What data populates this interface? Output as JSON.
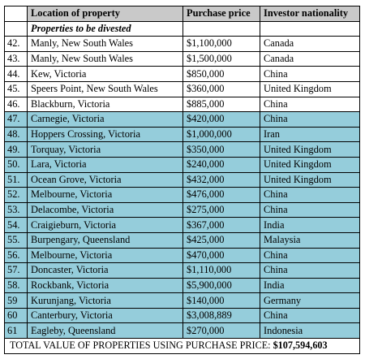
{
  "headers": {
    "location": "Location of property",
    "price": "Purchase price",
    "nationality": "Investor nationality"
  },
  "subheader": "Properties to be divested",
  "rows": [
    {
      "num": "42.",
      "location": "Manly, New South Wales",
      "price": "$1,100,000",
      "nationality": "Canada",
      "highlighted": false
    },
    {
      "num": "43.",
      "location": "Manly, New South Wales",
      "price": "$1,500,000",
      "nationality": "Canada",
      "highlighted": false
    },
    {
      "num": "44.",
      "location": "Kew, Victoria",
      "price": "$850,000",
      "nationality": "China",
      "highlighted": false
    },
    {
      "num": "45.",
      "location": "Speers Point, New South Wales",
      "price": "$360,000",
      "nationality": "United Kingdom",
      "highlighted": false
    },
    {
      "num": "46.",
      "location": "Blackburn, Victoria",
      "price": "$885,000",
      "nationality": "China",
      "highlighted": false
    },
    {
      "num": "47.",
      "location": "Carnegie, Victoria",
      "price": "$420,000",
      "nationality": "China",
      "highlighted": true
    },
    {
      "num": "48.",
      "location": "Hoppers Crossing, Victoria",
      "price": "$1,000,000",
      "nationality": "Iran",
      "highlighted": true
    },
    {
      "num": "49.",
      "location": "Torquay, Victoria",
      "price": "$350,000",
      "nationality": "United Kingdom",
      "highlighted": true
    },
    {
      "num": "50.",
      "location": "Lara, Victoria",
      "price": "$240,000",
      "nationality": "United Kingdom",
      "highlighted": true
    },
    {
      "num": "51.",
      "location": "Ocean Grove, Victoria",
      "price": "$432,000",
      "nationality": "United Kingdom",
      "highlighted": true
    },
    {
      "num": "52.",
      "location": "Melbourne, Victoria",
      "price": "$476,000",
      "nationality": "China",
      "highlighted": true
    },
    {
      "num": "53.",
      "location": "Delacombe, Victoria",
      "price": "$275,000",
      "nationality": "China",
      "highlighted": true
    },
    {
      "num": "54.",
      "location": "Craigieburn, Victoria",
      "price": "$367,000",
      "nationality": "India",
      "highlighted": true
    },
    {
      "num": "55.",
      "location": "Burpengary, Queensland",
      "price": "$425,000",
      "nationality": "Malaysia",
      "highlighted": true
    },
    {
      "num": "56.",
      "location": "Melbourne, Victoria",
      "price": "$470,000",
      "nationality": "China",
      "highlighted": true
    },
    {
      "num": "57.",
      "location": "Doncaster, Victoria",
      "price": "$1,110,000",
      "nationality": "China",
      "highlighted": true
    },
    {
      "num": "58.",
      "location": "Rockbank, Victoria",
      "price": "$5,900,000",
      "nationality": "India",
      "highlighted": true
    },
    {
      "num": "59",
      "location": "Kurunjang, Victoria",
      "price": "$140,000",
      "nationality": "Germany",
      "highlighted": true
    },
    {
      "num": "60",
      "location": "Canterbury, Victoria",
      "price": "$3,008,889",
      "nationality": "China",
      "highlighted": true
    },
    {
      "num": "61",
      "location": "Eagleby, Queensland",
      "price": "$270,000",
      "nationality": "Indonesia",
      "highlighted": true
    }
  ],
  "total": {
    "label": "TOTAL VALUE OF PROPERTIES USING PURCHASE PRICE:",
    "value": "$107,594,603"
  },
  "colors": {
    "header_bg": "#c9c9c9",
    "highlight_bg": "#95cddb"
  }
}
